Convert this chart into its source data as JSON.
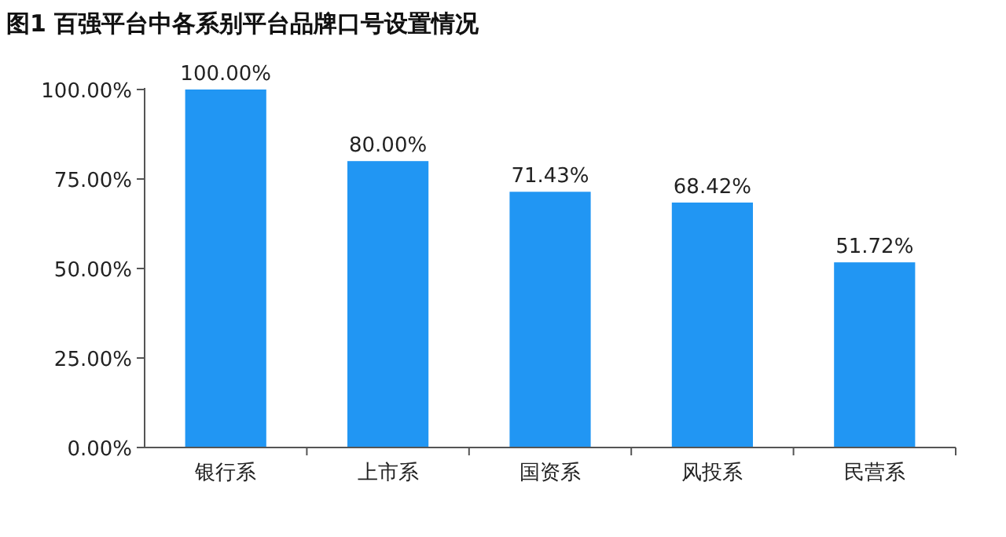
{
  "chart_data": {
    "type": "bar",
    "title": "图1 百强平台中各系别平台品牌口号设置情况",
    "categories": [
      "银行系",
      "上市系",
      "国资系",
      "风投系",
      "民营系"
    ],
    "values": [
      100,
      80,
      71.43,
      68.42,
      51.72
    ],
    "value_labels": [
      "100.00%",
      "80.00%",
      "71.43%",
      "68.42%",
      "51.72%"
    ],
    "color": "#2196f3",
    "ylim": [
      0,
      100
    ],
    "yticks": [
      {
        "value": 0,
        "label": "0.00%"
      },
      {
        "value": 25,
        "label": "25.00%"
      },
      {
        "value": 50,
        "label": "50.00%"
      },
      {
        "value": 75,
        "label": "75.00%"
      },
      {
        "value": 100,
        "label": "100.00%"
      }
    ]
  }
}
